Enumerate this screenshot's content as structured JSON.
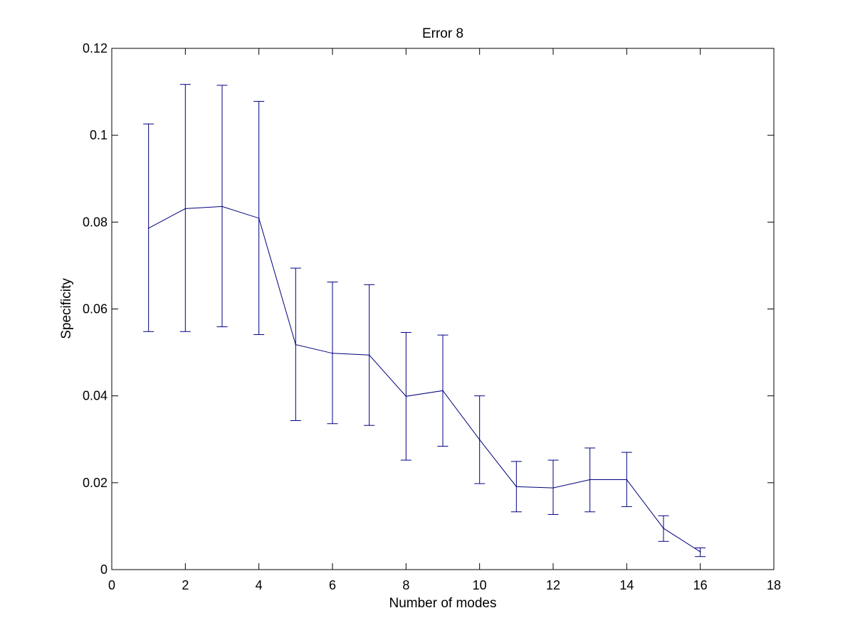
{
  "chart_data": {
    "type": "line",
    "title": "Error 8",
    "xlabel": "Number of modes",
    "ylabel": "Specificity",
    "xlim": [
      0,
      18
    ],
    "ylim": [
      0,
      0.12
    ],
    "xticks": [
      0,
      2,
      4,
      6,
      8,
      10,
      12,
      14,
      16,
      18
    ],
    "xtick_labels": [
      "0",
      "2",
      "4",
      "6",
      "8",
      "10",
      "12",
      "14",
      "16",
      "18"
    ],
    "yticks": [
      0,
      0.02,
      0.04,
      0.06,
      0.08,
      0.1,
      0.12
    ],
    "ytick_labels": [
      "0",
      "0.02",
      "0.04",
      "0.06",
      "0.08",
      "0.1",
      "0.12"
    ],
    "grid": false,
    "box": true,
    "series": [
      {
        "color": "#00007f",
        "x": [
          1,
          2,
          3,
          4,
          5,
          6,
          7,
          8,
          9,
          10,
          11,
          12,
          13,
          14,
          15,
          16
        ],
        "y": [
          0.0786,
          0.0831,
          0.0836,
          0.0809,
          0.0518,
          0.0498,
          0.0494,
          0.0399,
          0.0412,
          0.0299,
          0.0191,
          0.0188,
          0.0207,
          0.0207,
          0.0095,
          0.0041
        ],
        "err_lower": [
          0.0548,
          0.0548,
          0.0559,
          0.0541,
          0.0343,
          0.0336,
          0.0332,
          0.0252,
          0.0284,
          0.0198,
          0.0133,
          0.0127,
          0.0133,
          0.0145,
          0.0065,
          0.003
        ],
        "err_upper": [
          0.1026,
          0.1117,
          0.1115,
          0.1078,
          0.0694,
          0.0662,
          0.0656,
          0.0546,
          0.054,
          0.04,
          0.0249,
          0.0252,
          0.028,
          0.027,
          0.0124,
          0.005
        ]
      }
    ]
  }
}
